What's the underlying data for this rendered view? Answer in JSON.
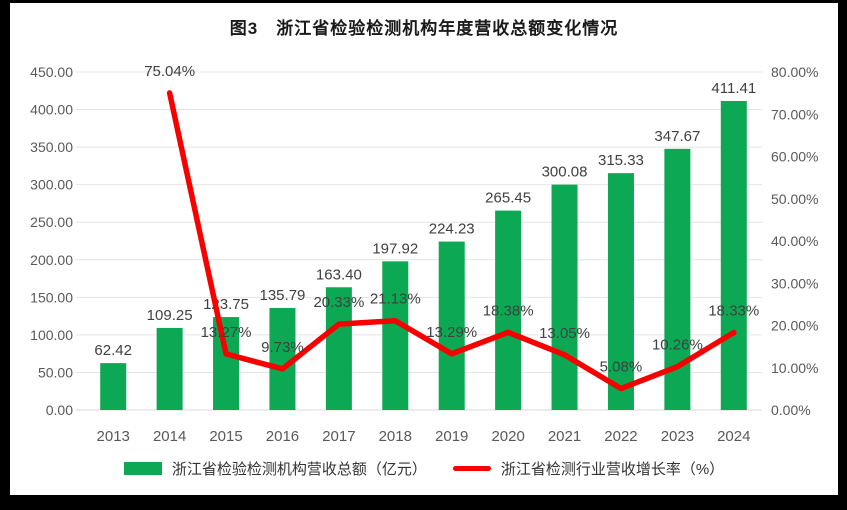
{
  "frame": {
    "background": "#000000",
    "card_background": "#ffffff"
  },
  "chart_data": {
    "type": "bar",
    "title": "图3　浙江省检验检测机构年度营收总额变化情况",
    "categories": [
      "2013",
      "2014",
      "2015",
      "2016",
      "2017",
      "2018",
      "2019",
      "2020",
      "2021",
      "2022",
      "2023",
      "2024"
    ],
    "series": [
      {
        "name": "浙江省检验检测机构营收总额（亿元）",
        "type": "bar",
        "axis": "left",
        "color": "#0ca853",
        "values": [
          62.42,
          109.25,
          123.75,
          135.79,
          163.4,
          197.92,
          224.23,
          265.45,
          300.08,
          315.33,
          347.67,
          411.41
        ],
        "labels": [
          "62.42",
          "109.25",
          "123.75",
          "135.79",
          "163.40",
          "197.92",
          "224.23",
          "265.45",
          "300.08",
          "315.33",
          "347.67",
          "411.41"
        ]
      },
      {
        "name": "浙江省检测行业营收增长率（%）",
        "type": "line",
        "axis": "right",
        "color": "#f80000",
        "values": [
          null,
          75.04,
          13.27,
          9.73,
          20.33,
          21.13,
          13.29,
          18.38,
          13.05,
          5.08,
          10.26,
          18.33
        ],
        "labels": [
          "",
          "75.04%",
          "13.27%",
          "9.73%",
          "20.33%",
          "21.13%",
          "13.29%",
          "18.38%",
          "13.05%",
          "5.08%",
          "10.26%",
          "18.33%"
        ]
      }
    ],
    "left_axis": {
      "min": 0,
      "max": 450,
      "step": 50,
      "tick_labels": [
        "0.00",
        "50.00",
        "100.00",
        "150.00",
        "200.00",
        "250.00",
        "300.00",
        "350.00",
        "400.00",
        "450.00"
      ]
    },
    "right_axis": {
      "min": 0,
      "max": 80,
      "step": 10,
      "tick_labels": [
        "0.00%",
        "10.00%",
        "20.00%",
        "30.00%",
        "40.00%",
        "50.00%",
        "60.00%",
        "70.00%",
        "80.00%"
      ]
    },
    "grid": true,
    "legend_position": "bottom",
    "colors": {
      "grid": "#e4e4e4",
      "axis_line": "#d9d9d9",
      "tick_text": "#595959",
      "data_label_text": "#404040",
      "title_text": "#1a1a1a",
      "legend_text": "#333333"
    }
  }
}
